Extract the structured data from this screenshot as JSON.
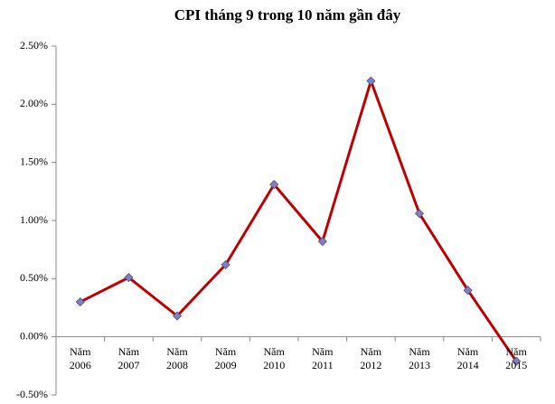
{
  "chart_data": {
    "type": "line",
    "title": "CPI tháng 9 trong 10 năm gần đây",
    "categories": [
      "Năm 2006",
      "Năm 2007",
      "Năm 2008",
      "Năm 2009",
      "Năm 2010",
      "Năm 2011",
      "Năm 2012",
      "Năm 2013",
      "Năm 2014",
      "Năm 2015"
    ],
    "values": [
      0.3,
      0.51,
      0.18,
      0.62,
      1.31,
      0.82,
      2.2,
      1.06,
      0.4,
      -0.21
    ],
    "color": "#c00000",
    "marker_color": "#8080c0",
    "ylim": [
      -0.5,
      2.5
    ],
    "yticks": [
      {
        "value": -0.5,
        "label": "-0.50%"
      },
      {
        "value": 0,
        "label": "0.00%"
      },
      {
        "value": 0.5,
        "label": "0.50%"
      },
      {
        "value": 1,
        "label": "1.00%"
      },
      {
        "value": 1.5,
        "label": "1.50%"
      },
      {
        "value": 2,
        "label": "2.00%"
      },
      {
        "value": 2.5,
        "label": "2.50%"
      }
    ],
    "grid": false
  }
}
